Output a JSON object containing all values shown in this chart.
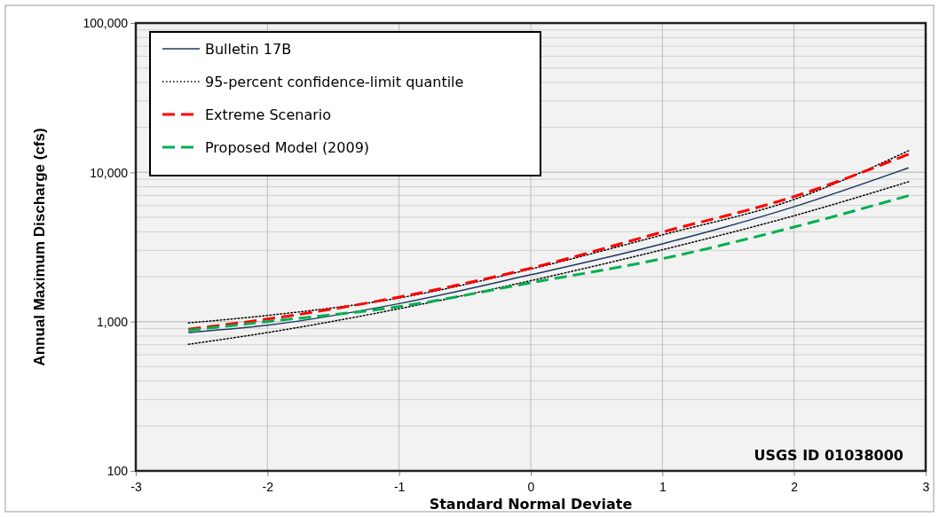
{
  "chart_data": {
    "type": "line",
    "xlabel": "Standard Normal Deviate",
    "ylabel": "Annual Maximum Discharge (cfs)",
    "log": "y",
    "grid": true,
    "legend": "top left",
    "xlim": [
      -3,
      3
    ],
    "xticks": [
      -3,
      -2,
      -1,
      0,
      1,
      2,
      3
    ],
    "ylim": [
      100,
      100000
    ],
    "yticks": [
      {
        "value": 100,
        "label": "100"
      },
      {
        "value": 1000,
        "label": "1,000"
      },
      {
        "value": 10000,
        "label": "10,000"
      },
      {
        "value": 100000,
        "label": "100,000"
      }
    ],
    "x": [
      -2.6,
      -2,
      -1,
      0,
      1,
      2,
      2.87
    ],
    "series": [
      {
        "name": "Bulletin 17B",
        "color": "#1f3864",
        "line_style": "solid",
        "values": [
          845,
          945,
          1320,
          2060,
          3320,
          5880,
          10720
        ]
      },
      {
        "name": "95-percent confidence-limit quantile",
        "color": "#000000",
        "line_style": "dotted",
        "values": [
          980,
          1100,
          1440,
          2250,
          3810,
          6580,
          13960
        ]
      },
      {
        "color": "#000000",
        "line_style": "dotted",
        "values": [
          705,
          845,
          1220,
          1880,
          3030,
          5120,
          8650
        ]
      },
      {
        "name": "Extreme Scenario",
        "color": "#ff0000",
        "line_style": "dashed",
        "values": [
          890,
          1040,
          1460,
          2280,
          3980,
          6880,
          13220
        ]
      },
      {
        "name": "Proposed Model (2009)",
        "color": "#00b050",
        "line_style": "dashed",
        "values": [
          873,
          1000,
          1260,
          1820,
          2640,
          4300,
          6980
        ]
      }
    ],
    "annotations": [
      {
        "text": "USGS ID 01038000"
      }
    ]
  }
}
